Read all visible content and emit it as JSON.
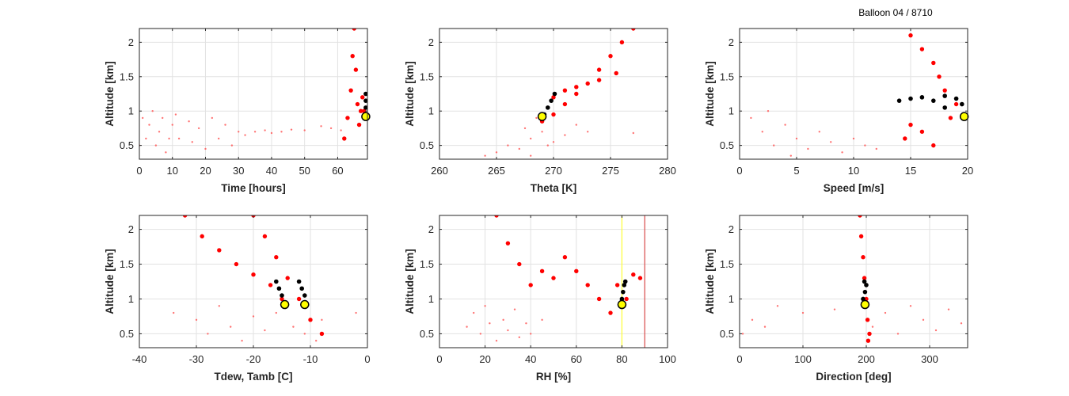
{
  "figure_title": "Balloon 04 / 8710",
  "colors": {
    "history": "#ff5a5a",
    "profile": "#ff0000",
    "recent": "#000000",
    "current_fill": "#ffff00",
    "current_edge": "#000000",
    "grid": "#e2e2e2",
    "axis": "#262626",
    "yellow_line": "#ffff33",
    "red_line": "#d94a4a"
  },
  "chart_data": [
    {
      "id": "time",
      "type": "scatter",
      "xlabel": "Time [hours]",
      "ylabel": "Altitude [km]",
      "xlim": [
        0,
        69
      ],
      "ylim": [
        0.3,
        2.2
      ],
      "xticks": [
        0,
        10,
        20,
        30,
        40,
        50,
        60
      ],
      "yticks": [
        0.5,
        1,
        1.5,
        2
      ],
      "ytick_labels": [
        "0.5",
        "1",
        "1.5",
        "2"
      ],
      "grid": true,
      "history": [
        [
          0,
          0.5
        ],
        [
          1,
          0.9
        ],
        [
          2,
          0.6
        ],
        [
          3,
          0.8
        ],
        [
          4,
          1.0
        ],
        [
          5,
          0.5
        ],
        [
          6,
          0.7
        ],
        [
          7,
          0.9
        ],
        [
          8,
          0.4
        ],
        [
          9,
          0.6
        ],
        [
          10,
          0.8
        ],
        [
          11,
          0.95
        ],
        [
          12,
          0.6
        ],
        [
          15,
          0.85
        ],
        [
          16,
          0.55
        ],
        [
          18,
          0.75
        ],
        [
          20,
          0.45
        ],
        [
          22,
          0.9
        ],
        [
          24,
          0.6
        ],
        [
          26,
          0.8
        ],
        [
          28,
          0.5
        ],
        [
          30,
          0.7
        ],
        [
          32,
          0.65
        ],
        [
          35,
          0.7
        ],
        [
          38,
          0.72
        ],
        [
          40,
          0.68
        ],
        [
          43,
          0.7
        ],
        [
          46,
          0.73
        ],
        [
          50,
          0.72
        ],
        [
          55,
          0.78
        ],
        [
          58,
          0.75
        ],
        [
          61,
          0.72
        ]
      ],
      "profile": [
        [
          62,
          0.6
        ],
        [
          63,
          0.9
        ],
        [
          64,
          1.3
        ],
        [
          64.5,
          1.8
        ],
        [
          65,
          2.2
        ],
        [
          65.5,
          1.6
        ],
        [
          66,
          1.1
        ],
        [
          66.5,
          0.8
        ],
        [
          67,
          1.0
        ],
        [
          67.5,
          1.2
        ],
        [
          68,
          1.0
        ]
      ],
      "recent": [
        [
          68.5,
          0.95
        ],
        [
          68.5,
          1.05
        ],
        [
          68.5,
          1.15
        ],
        [
          68.5,
          1.25
        ]
      ],
      "current": [
        68.5,
        0.92
      ]
    },
    {
      "id": "theta",
      "type": "scatter",
      "xlabel": "Theta [K]",
      "ylabel": "Altitude [km]",
      "xlim": [
        260,
        280
      ],
      "ylim": [
        0.3,
        2.2
      ],
      "xticks": [
        260,
        265,
        270,
        275,
        280
      ],
      "yticks": [
        0.5,
        1,
        1.5,
        2
      ],
      "ytick_labels": [
        "0.5",
        "1",
        "1.5",
        "2"
      ],
      "grid": true,
      "history": [
        [
          265,
          0.4
        ],
        [
          266,
          0.5
        ],
        [
          267,
          0.45
        ],
        [
          268,
          0.6
        ],
        [
          267.5,
          0.75
        ],
        [
          268.5,
          0.9
        ],
        [
          269,
          0.7
        ],
        [
          270,
          0.55
        ],
        [
          271,
          0.65
        ],
        [
          272,
          0.8
        ],
        [
          269.5,
          0.5
        ],
        [
          268,
          0.35
        ],
        [
          264,
          0.35
        ],
        [
          273,
          0.7
        ],
        [
          277,
          0.68
        ]
      ],
      "profile": [
        [
          269,
          0.85
        ],
        [
          270,
          0.95
        ],
        [
          271,
          1.1
        ],
        [
          272,
          1.25
        ],
        [
          273,
          1.4
        ],
        [
          274,
          1.6
        ],
        [
          275,
          1.8
        ],
        [
          276,
          2.0
        ],
        [
          277,
          2.2
        ],
        [
          270,
          1.2
        ],
        [
          271,
          1.3
        ],
        [
          272,
          1.35
        ],
        [
          274,
          1.45
        ],
        [
          275.5,
          1.55
        ]
      ],
      "recent": [
        [
          269.2,
          0.95
        ],
        [
          269.5,
          1.05
        ],
        [
          269.8,
          1.15
        ],
        [
          270.1,
          1.25
        ]
      ],
      "current": [
        269,
        0.92
      ]
    },
    {
      "id": "speed",
      "type": "scatter",
      "xlabel": "Speed [m/s]",
      "ylabel": "Altitude [km]",
      "xlim": [
        0,
        20
      ],
      "ylim": [
        0.3,
        2.2
      ],
      "xticks": [
        0,
        5,
        10,
        15,
        20
      ],
      "yticks": [
        0.5,
        1,
        1.5,
        2
      ],
      "ytick_labels": [
        "0.5",
        "1",
        "1.5",
        "2"
      ],
      "grid": true,
      "history": [
        [
          1,
          0.9
        ],
        [
          2,
          0.7
        ],
        [
          3,
          0.5
        ],
        [
          4,
          0.8
        ],
        [
          5,
          0.6
        ],
        [
          6,
          0.45
        ],
        [
          7,
          0.7
        ],
        [
          8,
          0.55
        ],
        [
          9,
          0.4
        ],
        [
          10,
          0.6
        ],
        [
          11,
          0.5
        ],
        [
          12,
          0.45
        ],
        [
          2.5,
          1.0
        ],
        [
          4.5,
          0.35
        ]
      ],
      "profile": [
        [
          15,
          2.1
        ],
        [
          16,
          1.9
        ],
        [
          17,
          1.7
        ],
        [
          17.5,
          1.5
        ],
        [
          18,
          1.3
        ],
        [
          19,
          1.1
        ],
        [
          18.5,
          0.9
        ],
        [
          16,
          0.7
        ],
        [
          15,
          0.8
        ],
        [
          17,
          0.5
        ],
        [
          14.5,
          0.6
        ]
      ],
      "recent": [
        [
          14,
          1.15
        ],
        [
          15,
          1.18
        ],
        [
          16,
          1.2
        ],
        [
          17,
          1.15
        ],
        [
          18,
          1.22
        ],
        [
          19,
          1.18
        ],
        [
          19.5,
          1.1
        ],
        [
          18,
          1.05
        ]
      ],
      "current": [
        19.7,
        0.92
      ]
    },
    {
      "id": "temp",
      "type": "scatter",
      "xlabel": "Tdew, Tamb [C]",
      "ylabel": "Altitude [km]",
      "xlim": [
        -40,
        0
      ],
      "ylim": [
        0.3,
        2.2
      ],
      "xticks": [
        -40,
        -30,
        -20,
        -10,
        0
      ],
      "yticks": [
        0.5,
        1,
        1.5,
        2
      ],
      "ytick_labels": [
        "0.5",
        "1",
        "1.5",
        "2"
      ],
      "grid": true,
      "history": [
        [
          -34,
          0.8
        ],
        [
          -30,
          0.7
        ],
        [
          -28,
          0.5
        ],
        [
          -26,
          0.9
        ],
        [
          -24,
          0.6
        ],
        [
          -22,
          0.4
        ],
        [
          -20,
          0.75
        ],
        [
          -18,
          0.55
        ],
        [
          -16,
          0.8
        ],
        [
          -13,
          0.6
        ],
        [
          -11,
          0.5
        ],
        [
          -9,
          0.4
        ],
        [
          -8,
          0.7
        ],
        [
          -2,
          0.8
        ]
      ],
      "profile": [
        [
          -32,
          2.2
        ],
        [
          -29,
          1.9
        ],
        [
          -26,
          1.7
        ],
        [
          -23,
          1.5
        ],
        [
          -20,
          1.35
        ],
        [
          -17,
          1.2
        ],
        [
          -15,
          1.0
        ],
        [
          -20,
          2.2
        ],
        [
          -18,
          1.9
        ],
        [
          -16,
          1.6
        ],
        [
          -14,
          1.3
        ],
        [
          -12,
          1.0
        ],
        [
          -10,
          0.7
        ],
        [
          -8,
          0.5
        ]
      ],
      "recent": [
        [
          -16,
          1.25
        ],
        [
          -15.5,
          1.15
        ],
        [
          -15,
          1.05
        ],
        [
          -12,
          1.25
        ],
        [
          -11.5,
          1.15
        ],
        [
          -11,
          1.05
        ]
      ],
      "current_points": [
        [
          -14.5,
          0.92
        ],
        [
          -11,
          0.92
        ]
      ]
    },
    {
      "id": "rh",
      "type": "scatter",
      "xlabel": "RH [%]",
      "ylabel": "Altitude [km]",
      "xlim": [
        0,
        100
      ],
      "ylim": [
        0.3,
        2.2
      ],
      "xticks": [
        0,
        20,
        40,
        60,
        80,
        100
      ],
      "yticks": [
        0.5,
        1,
        1.5,
        2
      ],
      "ytick_labels": [
        "0.5",
        "1",
        "1.5",
        "2"
      ],
      "grid": true,
      "vlines": [
        {
          "x": 80,
          "color_key": "yellow_line"
        },
        {
          "x": 90,
          "color_key": "red_line"
        }
      ],
      "history": [
        [
          12,
          0.6
        ],
        [
          15,
          0.8
        ],
        [
          18,
          0.5
        ],
        [
          20,
          0.9
        ],
        [
          22,
          0.65
        ],
        [
          25,
          0.4
        ],
        [
          28,
          0.7
        ],
        [
          30,
          0.55
        ],
        [
          33,
          0.85
        ],
        [
          35,
          0.45
        ],
        [
          38,
          0.65
        ],
        [
          40,
          0.5
        ],
        [
          45,
          0.7
        ]
      ],
      "profile": [
        [
          25,
          2.2
        ],
        [
          30,
          1.8
        ],
        [
          35,
          1.5
        ],
        [
          40,
          1.2
        ],
        [
          45,
          1.4
        ],
        [
          50,
          1.3
        ],
        [
          55,
          1.6
        ],
        [
          60,
          1.4
        ],
        [
          65,
          1.2
        ],
        [
          70,
          1.0
        ],
        [
          75,
          0.8
        ],
        [
          85,
          1.35
        ],
        [
          88,
          1.3
        ],
        [
          78,
          1.2
        ],
        [
          82,
          1.0
        ]
      ],
      "recent": [
        [
          80,
          1.0
        ],
        [
          80.5,
          1.1
        ],
        [
          81,
          1.2
        ],
        [
          81.5,
          1.25
        ]
      ],
      "current": [
        80,
        0.92
      ]
    },
    {
      "id": "direction",
      "type": "scatter",
      "xlabel": "Direction [deg]",
      "ylabel": "Altitude [km]",
      "xlim": [
        0,
        360
      ],
      "ylim": [
        0.3,
        2.2
      ],
      "xticks": [
        0,
        100,
        200,
        300
      ],
      "yticks": [
        0.5,
        1,
        1.5,
        2
      ],
      "ytick_labels": [
        "0.5",
        "1",
        "1.5",
        "2"
      ],
      "grid": true,
      "history": [
        [
          5,
          0.5
        ],
        [
          20,
          0.7
        ],
        [
          40,
          0.6
        ],
        [
          60,
          0.9
        ],
        [
          100,
          0.8
        ],
        [
          150,
          0.85
        ],
        [
          210,
          0.6
        ],
        [
          230,
          0.8
        ],
        [
          250,
          0.5
        ],
        [
          270,
          0.9
        ],
        [
          290,
          0.7
        ],
        [
          310,
          0.55
        ],
        [
          330,
          0.85
        ],
        [
          350,
          0.65
        ]
      ],
      "profile": [
        [
          190,
          2.2
        ],
        [
          192,
          1.9
        ],
        [
          195,
          1.6
        ],
        [
          197,
          1.3
        ],
        [
          200,
          1.0
        ],
        [
          202,
          0.7
        ],
        [
          205,
          0.5
        ],
        [
          203,
          0.4
        ]
      ],
      "recent": [
        [
          195,
          1.0
        ],
        [
          198,
          1.1
        ],
        [
          200,
          1.2
        ],
        [
          197,
          1.25
        ]
      ],
      "current": [
        198,
        0.92
      ]
    }
  ]
}
